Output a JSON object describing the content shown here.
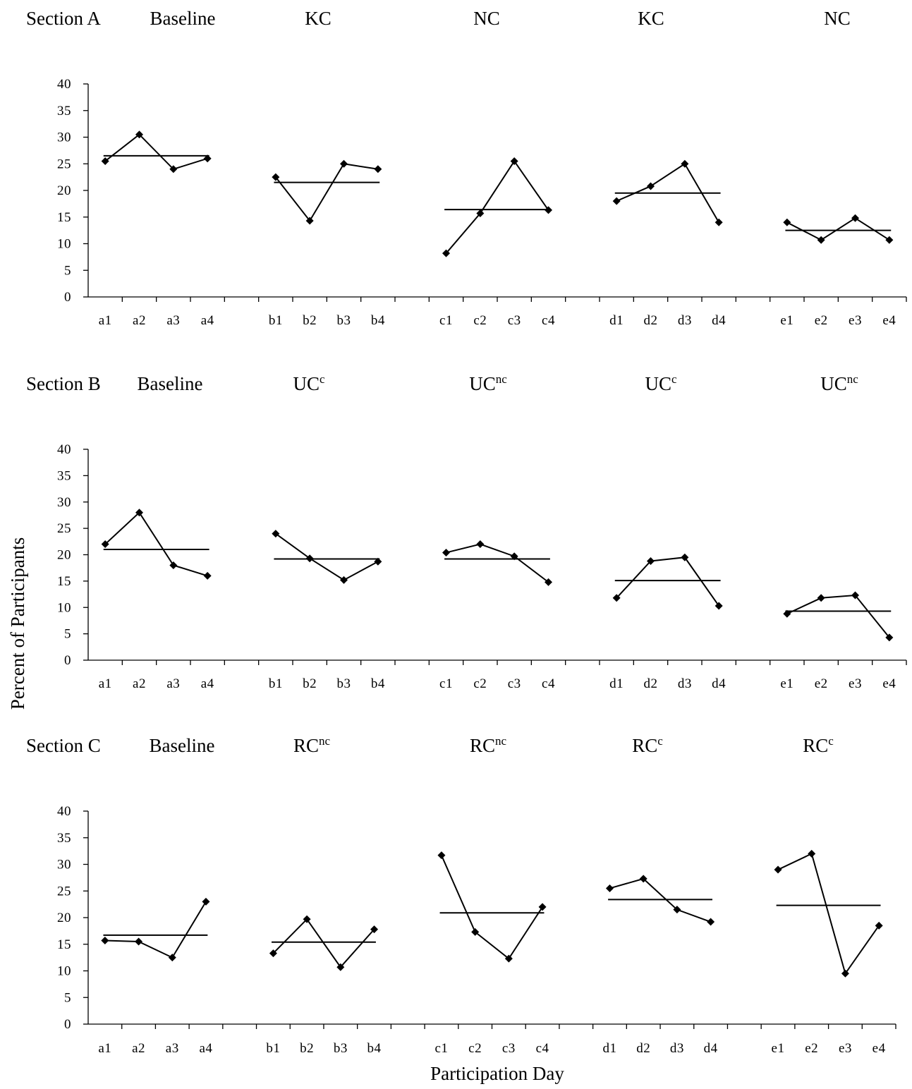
{
  "axis_labels": {
    "ylabel": "Percent of Participants",
    "xlabel": "Participation Day"
  },
  "chart_data": [
    {
      "type": "line",
      "section_label": "Section A",
      "phases": [
        {
          "label": "Baseline",
          "sup": "",
          "categories": [
            "a1",
            "a2",
            "a3",
            "a4"
          ],
          "values": [
            25.5,
            30.5,
            24,
            26
          ],
          "mean": 26.5
        },
        {
          "label": "KC",
          "sup": "",
          "categories": [
            "b1",
            "b2",
            "b3",
            "b4"
          ],
          "values": [
            22.5,
            14.3,
            25,
            24
          ],
          "mean": 21.5
        },
        {
          "label": "NC",
          "sup": "",
          "categories": [
            "c1",
            "c2",
            "c3",
            "c4"
          ],
          "values": [
            8.2,
            15.7,
            25.5,
            16.3
          ],
          "mean": 16.4
        },
        {
          "label": "KC",
          "sup": "",
          "categories": [
            "d1",
            "d2",
            "d3",
            "d4"
          ],
          "values": [
            18,
            20.8,
            25,
            14
          ],
          "mean": 19.5
        },
        {
          "label": "NC",
          "sup": "",
          "categories": [
            "e1",
            "e2",
            "e3",
            "e4"
          ],
          "values": [
            14,
            10.7,
            14.8,
            10.7
          ],
          "mean": 12.5
        }
      ],
      "y_ticks": [
        0,
        5,
        10,
        15,
        20,
        25,
        30,
        35,
        40
      ],
      "ylim": [
        0,
        40
      ]
    },
    {
      "type": "line",
      "section_label": "Section B",
      "phases": [
        {
          "label": "Baseline",
          "sup": "",
          "categories": [
            "a1",
            "a2",
            "a3",
            "a4"
          ],
          "values": [
            22,
            28,
            18,
            16
          ],
          "mean": 21
        },
        {
          "label": "UC",
          "sup": "c",
          "categories": [
            "b1",
            "b2",
            "b3",
            "b4"
          ],
          "values": [
            24,
            19.3,
            15.2,
            18.7
          ],
          "mean": 19.2
        },
        {
          "label": "UC",
          "sup": "nc",
          "categories": [
            "c1",
            "c2",
            "c3",
            "c4"
          ],
          "values": [
            20.4,
            22,
            19.7,
            14.8
          ],
          "mean": 19.2
        },
        {
          "label": "UC",
          "sup": "c",
          "categories": [
            "d1",
            "d2",
            "d3",
            "d4"
          ],
          "values": [
            11.8,
            18.8,
            19.5,
            10.3
          ],
          "mean": 15.1
        },
        {
          "label": "UC",
          "sup": "nc",
          "categories": [
            "e1",
            "e2",
            "e3",
            "e4"
          ],
          "values": [
            8.8,
            11.8,
            12.3,
            4.3
          ],
          "mean": 9.3
        }
      ],
      "y_ticks": [
        0,
        5,
        10,
        15,
        20,
        25,
        30,
        35,
        40
      ],
      "ylim": [
        0,
        40
      ]
    },
    {
      "type": "line",
      "section_label": "Section C",
      "phases": [
        {
          "label": "Baseline",
          "sup": "",
          "categories": [
            "a1",
            "a2",
            "a3",
            "a4"
          ],
          "values": [
            15.7,
            15.5,
            12.5,
            23
          ],
          "mean": 16.7
        },
        {
          "label": "RC",
          "sup": "nc",
          "categories": [
            "b1",
            "b2",
            "b3",
            "b4"
          ],
          "values": [
            13.3,
            19.7,
            10.7,
            17.8
          ],
          "mean": 15.4
        },
        {
          "label": "RC",
          "sup": "nc",
          "categories": [
            "c1",
            "c2",
            "c3",
            "c4"
          ],
          "values": [
            31.7,
            17.3,
            12.3,
            22
          ],
          "mean": 20.9
        },
        {
          "label": "RC",
          "sup": "c",
          "categories": [
            "d1",
            "d2",
            "d3",
            "d4"
          ],
          "values": [
            25.5,
            27.3,
            21.5,
            19.2
          ],
          "mean": 23.4
        },
        {
          "label": "RC",
          "sup": "c",
          "categories": [
            "e1",
            "e2",
            "e3",
            "e4"
          ],
          "values": [
            29,
            32,
            9.5,
            18.5
          ],
          "mean": 22.3
        }
      ],
      "y_ticks": [
        0,
        5,
        10,
        15,
        20,
        25,
        30,
        35,
        40
      ],
      "ylim": [
        0,
        40
      ]
    }
  ]
}
